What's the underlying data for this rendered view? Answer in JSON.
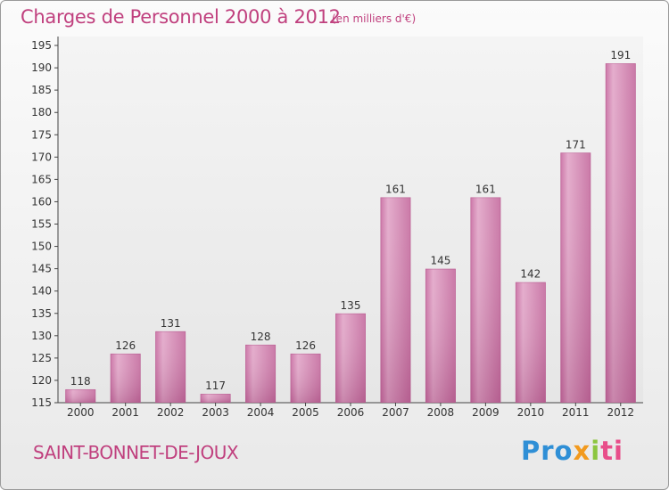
{
  "header": {
    "title": "Charges de Personnel 2000 à 2012",
    "unit": "(en milliers d'€)"
  },
  "footer": {
    "commune": "SAINT-BONNET-DE-JOUX",
    "brand": [
      "Pro",
      "x",
      "i",
      "ti"
    ]
  },
  "colors": {
    "bar": "#d78db6",
    "accent": "#c0407e"
  },
  "chart_data": {
    "type": "bar",
    "categories": [
      "2000",
      "2001",
      "2002",
      "2003",
      "2004",
      "2005",
      "2006",
      "2007",
      "2008",
      "2009",
      "2010",
      "2011",
      "2012"
    ],
    "values": [
      118,
      126,
      131,
      117,
      128,
      126,
      135,
      161,
      145,
      161,
      142,
      171,
      191
    ],
    "ylim": [
      115,
      195
    ],
    "yticks": [
      115,
      120,
      125,
      130,
      135,
      140,
      145,
      150,
      155,
      160,
      165,
      170,
      175,
      180,
      185,
      190,
      195
    ],
    "grid": false
  }
}
